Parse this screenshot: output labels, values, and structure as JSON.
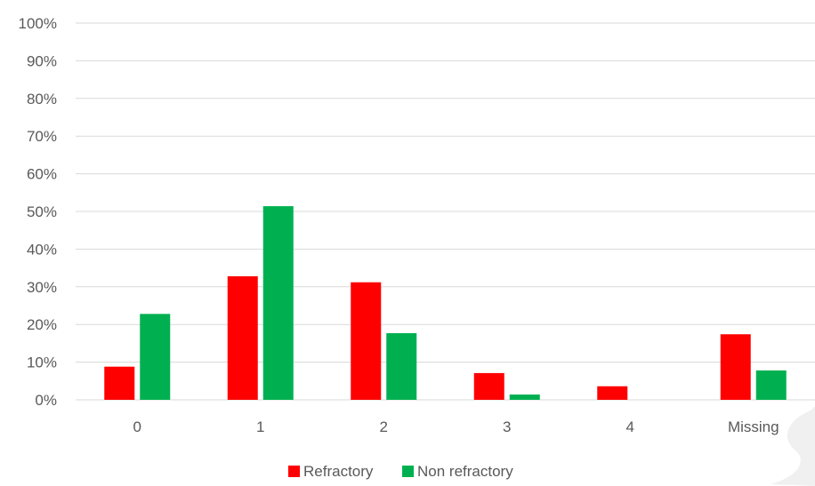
{
  "chart_data": {
    "type": "bar",
    "categories": [
      "0",
      "1",
      "2",
      "3",
      "4",
      "Missing"
    ],
    "series": [
      {
        "name": "Refractory",
        "color": "#ff0000",
        "values": [
          8.8,
          32.8,
          31.2,
          7.1,
          3.6,
          17.4
        ]
      },
      {
        "name": "Non refractory",
        "color": "#00b050",
        "values": [
          22.8,
          51.4,
          17.7,
          1.4,
          0,
          7.8
        ]
      }
    ],
    "ylim": [
      0,
      100
    ],
    "yticks": [
      "0%",
      "10%",
      "20%",
      "30%",
      "40%",
      "50%",
      "60%",
      "70%",
      "80%",
      "90%",
      "100%"
    ],
    "grid": true,
    "legend_position": "bottom"
  },
  "legend": [
    {
      "label": "Refractory",
      "color": "#ff0000"
    },
    {
      "label": "Non refractory",
      "color": "#00b050"
    }
  ]
}
